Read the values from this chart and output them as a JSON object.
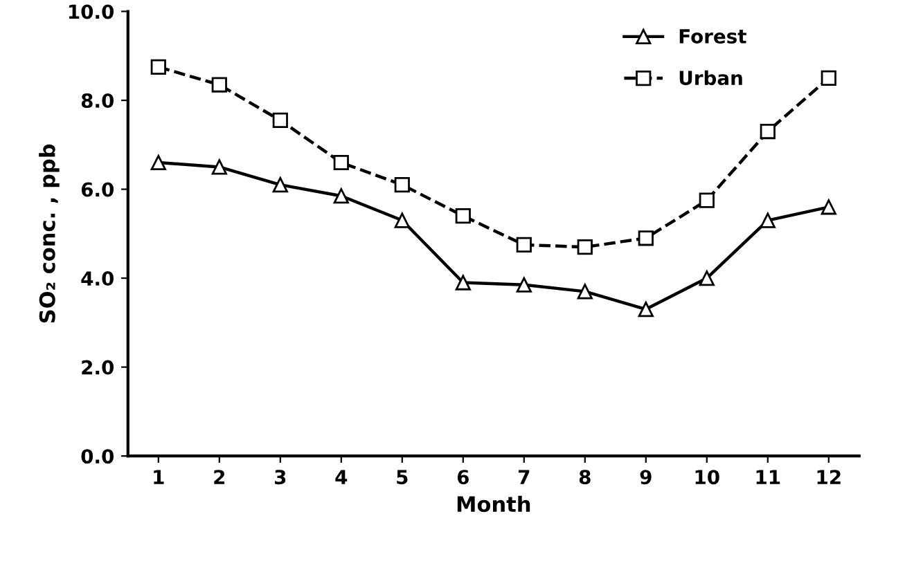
{
  "chart_data": {
    "type": "line",
    "xlabel": "Month",
    "ylabel": "SO₂ conc. , ppb",
    "categories": [
      "1",
      "2",
      "3",
      "4",
      "5",
      "6",
      "7",
      "8",
      "9",
      "10",
      "11",
      "12"
    ],
    "series": [
      {
        "name": "Forest",
        "color": "#000000",
        "marker": "triangle",
        "line_style": "solid",
        "values": [
          6.6,
          6.5,
          6.1,
          5.85,
          5.3,
          3.9,
          3.85,
          3.7,
          3.3,
          4.0,
          5.3,
          5.6
        ]
      },
      {
        "name": "Urban",
        "color": "#000000",
        "marker": "square",
        "line_style": "dashed",
        "values": [
          8.75,
          8.35,
          7.55,
          6.6,
          6.1,
          5.4,
          4.75,
          4.7,
          4.9,
          5.75,
          7.3,
          8.5
        ]
      }
    ],
    "ylim": [
      0,
      10
    ],
    "yticks": [
      {
        "value": 0,
        "label": "0.0"
      },
      {
        "value": 2,
        "label": "2.0"
      },
      {
        "value": 4,
        "label": "4.0"
      },
      {
        "value": 6,
        "label": "6.0"
      },
      {
        "value": 8,
        "label": "8.0"
      },
      {
        "value": 10,
        "label": "10.0"
      }
    ],
    "grid": false,
    "legend": "top right"
  }
}
